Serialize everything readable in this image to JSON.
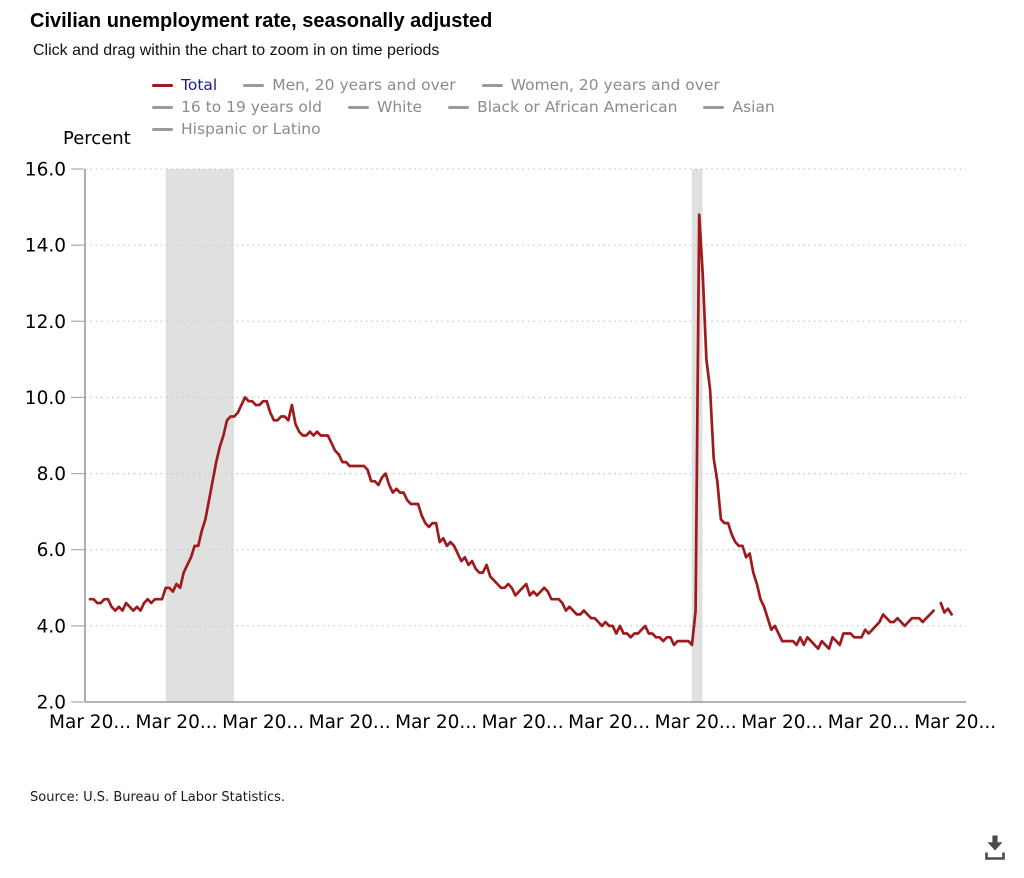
{
  "header": {
    "title": "Civilian unemployment rate, seasonally adjusted",
    "subtitle": "Click and drag within the chart to zoom in on time periods"
  },
  "legend": {
    "rows": [
      [
        {
          "slug": "total",
          "label": "Total",
          "dash_color": "#9e1a1d",
          "label_color": "#1c1c8f",
          "active": true
        },
        {
          "slug": "men-20-and-over",
          "label": "Men, 20 years and over",
          "dash_color": "#9a9a9a",
          "label_color": "#8c8c8c",
          "active": false
        },
        {
          "slug": "women-20-and-over",
          "label": "Women, 20 years and over",
          "dash_color": "#9a9a9a",
          "label_color": "#8c8c8c",
          "active": false
        }
      ],
      [
        {
          "slug": "16-to-19-years-old",
          "label": "16 to 19 years old",
          "dash_color": "#9a9a9a",
          "label_color": "#8c8c8c",
          "active": false
        },
        {
          "slug": "white",
          "label": "White",
          "dash_color": "#9a9a9a",
          "label_color": "#8c8c8c",
          "active": false
        },
        {
          "slug": "black-or-african-american",
          "label": "Black or African American",
          "dash_color": "#9a9a9a",
          "label_color": "#8c8c8c",
          "active": false
        },
        {
          "slug": "asian",
          "label": "Asian",
          "dash_color": "#9a9a9a",
          "label_color": "#8c8c8c",
          "active": false
        }
      ],
      [
        {
          "slug": "hispanic-or-latino",
          "label": "Hispanic or Latino",
          "dash_color": "#9a9a9a",
          "label_color": "#8c8c8c",
          "active": false
        }
      ]
    ]
  },
  "footer": {
    "source": "Source: U.S. Bureau of Labor Statistics."
  },
  "chart_data": {
    "type": "line",
    "title": "Civilian unemployment rate, seasonally adjusted",
    "xlabel": "",
    "ylabel": "Percent",
    "ylim": [
      2,
      16
    ],
    "xlim": [
      2006.054,
      2026.42
    ],
    "yticks": [
      2,
      4,
      6,
      8,
      10,
      12,
      14,
      16
    ],
    "y_tick_labels": [
      "2.0",
      "4.0",
      "6.0",
      "8.0",
      "10.0",
      "12.0",
      "14.0",
      "16.0"
    ],
    "x_ticks": [
      2006.17,
      2008.17,
      2010.17,
      2012.17,
      2014.17,
      2016.17,
      2018.17,
      2020.17,
      2022.17,
      2024.17,
      2026.17
    ],
    "x_tick_labels": [
      "Mar 20...",
      "Mar 20...",
      "Mar 20...",
      "Mar 20...",
      "Mar 20...",
      "Mar 20...",
      "Mar 20...",
      "Mar 20...",
      "Mar 20...",
      "Mar 20...",
      "Mar 20..."
    ],
    "grid": "dotted horizontal gridlines",
    "legend_position": "top",
    "shaded_regions": [
      {
        "from": 2007.92,
        "to": 2009.5,
        "label": "recession"
      },
      {
        "from": 2020.08,
        "to": 2020.33,
        "label": "recession"
      }
    ],
    "colors": {
      "band": "#e0e0e0",
      "grid": "#c9c9cf",
      "axis": "#999999",
      "tick": "#aaaaaa"
    },
    "series": [
      {
        "name": "Total",
        "color": "#9e1a1d",
        "frequency": "monthly",
        "x_start": 2006.17,
        "values": [
          4.7,
          4.7,
          4.6,
          4.6,
          4.7,
          4.7,
          4.5,
          4.4,
          4.5,
          4.4,
          4.6,
          4.5,
          4.4,
          4.5,
          4.4,
          4.6,
          4.7,
          4.6,
          4.7,
          4.7,
          4.7,
          5.0,
          5.0,
          4.9,
          5.1,
          5.0,
          5.4,
          5.6,
          5.8,
          6.1,
          6.1,
          6.5,
          6.8,
          7.3,
          7.8,
          8.3,
          8.7,
          9.0,
          9.4,
          9.5,
          9.5,
          9.6,
          9.8,
          10.0,
          9.9,
          9.9,
          9.8,
          9.8,
          9.9,
          9.9,
          9.6,
          9.4,
          9.4,
          9.5,
          9.5,
          9.4,
          9.8,
          9.3,
          9.1,
          9.0,
          9.0,
          9.1,
          9.0,
          9.1,
          9.0,
          9.0,
          9.0,
          8.8,
          8.6,
          8.5,
          8.3,
          8.3,
          8.2,
          8.2,
          8.2,
          8.2,
          8.2,
          8.1,
          7.8,
          7.8,
          7.7,
          7.9,
          8.0,
          7.7,
          7.5,
          7.6,
          7.5,
          7.5,
          7.3,
          7.2,
          7.2,
          7.2,
          6.9,
          6.7,
          6.6,
          6.7,
          6.7,
          6.2,
          6.3,
          6.1,
          6.2,
          6.1,
          5.9,
          5.7,
          5.8,
          5.6,
          5.7,
          5.5,
          5.4,
          5.4,
          5.6,
          5.3,
          5.2,
          5.1,
          5.0,
          5.0,
          5.1,
          5.0,
          4.8,
          4.9,
          5.0,
          5.1,
          4.8,
          4.9,
          4.8,
          4.9,
          5.0,
          4.9,
          4.7,
          4.7,
          4.7,
          4.6,
          4.4,
          4.5,
          4.4,
          4.3,
          4.3,
          4.4,
          4.3,
          4.2,
          4.2,
          4.1,
          4.0,
          4.1,
          4.0,
          4.0,
          3.8,
          4.0,
          3.8,
          3.8,
          3.7,
          3.8,
          3.8,
          3.9,
          4.0,
          3.8,
          3.8,
          3.7,
          3.7,
          3.6,
          3.7,
          3.7,
          3.5,
          3.6,
          3.6,
          3.6,
          3.6,
          3.5,
          4.4,
          14.8,
          13.2,
          11.0,
          10.2,
          8.4,
          7.8,
          6.8,
          6.7,
          6.7,
          6.4,
          6.2,
          6.1,
          6.1,
          5.8,
          5.9,
          5.4,
          5.1,
          4.7,
          4.5,
          4.2,
          3.9,
          4.0,
          3.8,
          3.6,
          3.6,
          3.6,
          3.6,
          3.5,
          3.7,
          3.5,
          3.7,
          3.6,
          3.5,
          3.4,
          3.6,
          3.5,
          3.4,
          3.7,
          3.6,
          3.5,
          3.8,
          3.8,
          3.8,
          3.7,
          3.7,
          3.7,
          3.9,
          3.8,
          3.9,
          4.0,
          4.1,
          4.3,
          4.2,
          4.1,
          4.1,
          4.2,
          4.1,
          4.0,
          4.1,
          4.2,
          4.2,
          4.2,
          4.1,
          4.2,
          4.3,
          4.4,
          null,
          4.6,
          4.35,
          4.45,
          4.3
        ]
      }
    ]
  }
}
